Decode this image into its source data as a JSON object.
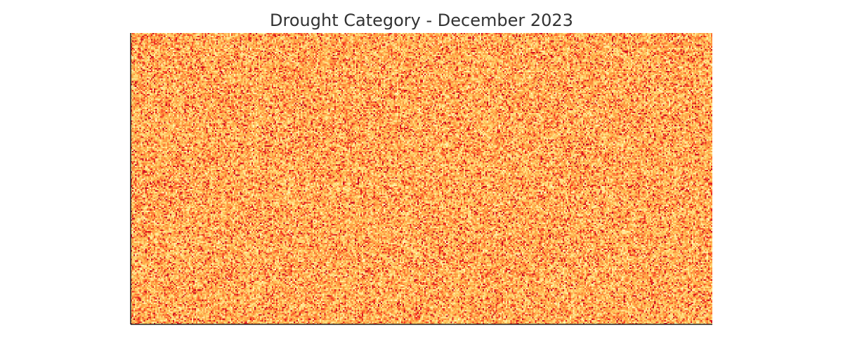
{
  "chart_data": {
    "type": "heatmap",
    "title": "Drought Category - December 2023",
    "xlabel": "",
    "ylabel": "",
    "grid": false,
    "legend": "none",
    "value_range": [
      0,
      4
    ],
    "colormap": [
      "#ffffcc",
      "#ffeda0",
      "#fed976",
      "#feb24c",
      "#fd8d3c",
      "#fc4e2a",
      "#e31a1c",
      "#bd0026"
    ],
    "pattern": "dense random noise field; values concentrated in the low-to-mid range with scattered high-category pixels",
    "rows": 200,
    "cols": 400
  }
}
